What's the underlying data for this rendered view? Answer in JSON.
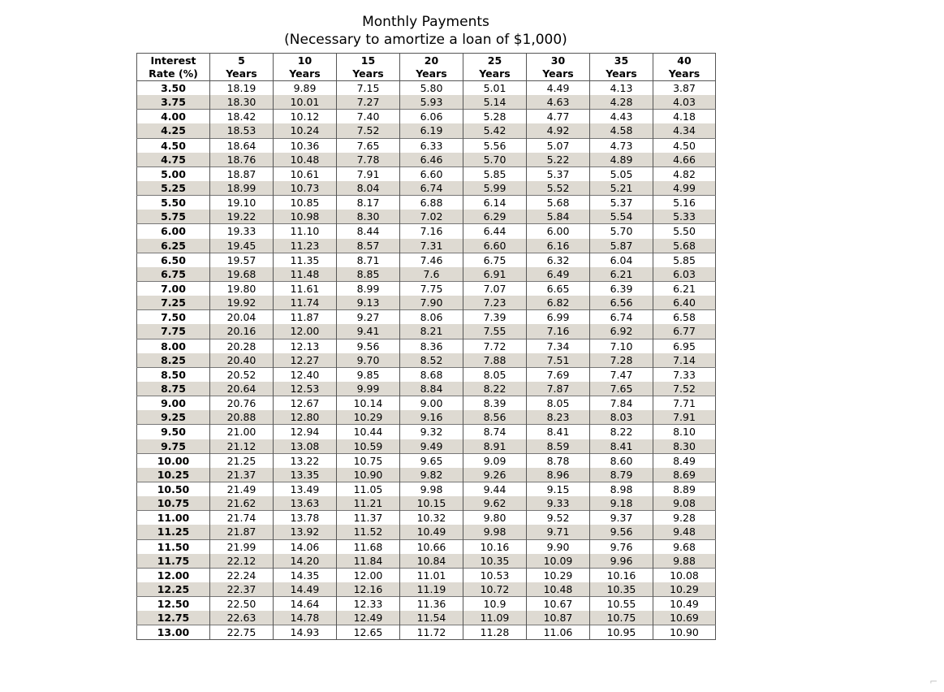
{
  "title": "Monthly Payments",
  "subtitle": "(Necessary to amortize a loan of $1,000)",
  "columns": [
    {
      "top": "Interest",
      "bottom": "Rate (%)"
    },
    {
      "top": "5",
      "bottom": "Years"
    },
    {
      "top": "10",
      "bottom": "Years"
    },
    {
      "top": "15",
      "bottom": "Years"
    },
    {
      "top": "20",
      "bottom": "Years"
    },
    {
      "top": "25",
      "bottom": "Years"
    },
    {
      "top": "30",
      "bottom": "Years"
    },
    {
      "top": "35",
      "bottom": "Years"
    },
    {
      "top": "40",
      "bottom": "Years"
    }
  ],
  "rows": [
    [
      "3.50",
      "18.19",
      "9.89",
      "7.15",
      "5.80",
      "5.01",
      "4.49",
      "4.13",
      "3.87"
    ],
    [
      "3.75",
      "18.30",
      "10.01",
      "7.27",
      "5.93",
      "5.14",
      "4.63",
      "4.28",
      "4.03"
    ],
    [
      "4.00",
      "18.42",
      "10.12",
      "7.40",
      "6.06",
      "5.28",
      "4.77",
      "4.43",
      "4.18"
    ],
    [
      "4.25",
      "18.53",
      "10.24",
      "7.52",
      "6.19",
      "5.42",
      "4.92",
      "4.58",
      "4.34"
    ],
    [
      "4.50",
      "18.64",
      "10.36",
      "7.65",
      "6.33",
      "5.56",
      "5.07",
      "4.73",
      "4.50"
    ],
    [
      "4.75",
      "18.76",
      "10.48",
      "7.78",
      "6.46",
      "5.70",
      "5.22",
      "4.89",
      "4.66"
    ],
    [
      "5.00",
      "18.87",
      "10.61",
      "7.91",
      "6.60",
      "5.85",
      "5.37",
      "5.05",
      "4.82"
    ],
    [
      "5.25",
      "18.99",
      "10.73",
      "8.04",
      "6.74",
      "5.99",
      "5.52",
      "5.21",
      "4.99"
    ],
    [
      "5.50",
      "19.10",
      "10.85",
      "8.17",
      "6.88",
      "6.14",
      "5.68",
      "5.37",
      "5.16"
    ],
    [
      "5.75",
      "19.22",
      "10.98",
      "8.30",
      "7.02",
      "6.29",
      "5.84",
      "5.54",
      "5.33"
    ],
    [
      "6.00",
      "19.33",
      "11.10",
      "8.44",
      "7.16",
      "6.44",
      "6.00",
      "5.70",
      "5.50"
    ],
    [
      "6.25",
      "19.45",
      "11.23",
      "8.57",
      "7.31",
      "6.60",
      "6.16",
      "5.87",
      "5.68"
    ],
    [
      "6.50",
      "19.57",
      "11.35",
      "8.71",
      "7.46",
      "6.75",
      "6.32",
      "6.04",
      "5.85"
    ],
    [
      "6.75",
      "19.68",
      "11.48",
      "8.85",
      "7.6",
      "6.91",
      "6.49",
      "6.21",
      "6.03"
    ],
    [
      "7.00",
      "19.80",
      "11.61",
      "8.99",
      "7.75",
      "7.07",
      "6.65",
      "6.39",
      "6.21"
    ],
    [
      "7.25",
      "19.92",
      "11.74",
      "9.13",
      "7.90",
      "7.23",
      "6.82",
      "6.56",
      "6.40"
    ],
    [
      "7.50",
      "20.04",
      "11.87",
      "9.27",
      "8.06",
      "7.39",
      "6.99",
      "6.74",
      "6.58"
    ],
    [
      "7.75",
      "20.16",
      "12.00",
      "9.41",
      "8.21",
      "7.55",
      "7.16",
      "6.92",
      "6.77"
    ],
    [
      "8.00",
      "20.28",
      "12.13",
      "9.56",
      "8.36",
      "7.72",
      "7.34",
      "7.10",
      "6.95"
    ],
    [
      "8.25",
      "20.40",
      "12.27",
      "9.70",
      "8.52",
      "7.88",
      "7.51",
      "7.28",
      "7.14"
    ],
    [
      "8.50",
      "20.52",
      "12.40",
      "9.85",
      "8.68",
      "8.05",
      "7.69",
      "7.47",
      "7.33"
    ],
    [
      "8.75",
      "20.64",
      "12.53",
      "9.99",
      "8.84",
      "8.22",
      "7.87",
      "7.65",
      "7.52"
    ],
    [
      "9.00",
      "20.76",
      "12.67",
      "10.14",
      "9.00",
      "8.39",
      "8.05",
      "7.84",
      "7.71"
    ],
    [
      "9.25",
      "20.88",
      "12.80",
      "10.29",
      "9.16",
      "8.56",
      "8.23",
      "8.03",
      "7.91"
    ],
    [
      "9.50",
      "21.00",
      "12.94",
      "10.44",
      "9.32",
      "8.74",
      "8.41",
      "8.22",
      "8.10"
    ],
    [
      "9.75",
      "21.12",
      "13.08",
      "10.59",
      "9.49",
      "8.91",
      "8.59",
      "8.41",
      "8.30"
    ],
    [
      "10.00",
      "21.25",
      "13.22",
      "10.75",
      "9.65",
      "9.09",
      "8.78",
      "8.60",
      "8.49"
    ],
    [
      "10.25",
      "21.37",
      "13.35",
      "10.90",
      "9.82",
      "9.26",
      "8.96",
      "8.79",
      "8.69"
    ],
    [
      "10.50",
      "21.49",
      "13.49",
      "11.05",
      "9.98",
      "9.44",
      "9.15",
      "8.98",
      "8.89"
    ],
    [
      "10.75",
      "21.62",
      "13.63",
      "11.21",
      "10.15",
      "9.62",
      "9.33",
      "9.18",
      "9.08"
    ],
    [
      "11.00",
      "21.74",
      "13.78",
      "11.37",
      "10.32",
      "9.80",
      "9.52",
      "9.37",
      "9.28"
    ],
    [
      "11.25",
      "21.87",
      "13.92",
      "11.52",
      "10.49",
      "9.98",
      "9.71",
      "9.56",
      "9.48"
    ],
    [
      "11.50",
      "21.99",
      "14.06",
      "11.68",
      "10.66",
      "10.16",
      "9.90",
      "9.76",
      "9.68"
    ],
    [
      "11.75",
      "22.12",
      "14.20",
      "11.84",
      "10.84",
      "10.35",
      "10.09",
      "9.96",
      "9.88"
    ],
    [
      "12.00",
      "22.24",
      "14.35",
      "12.00",
      "11.01",
      "10.53",
      "10.29",
      "10.16",
      "10.08"
    ],
    [
      "12.25",
      "22.37",
      "14.49",
      "12.16",
      "11.19",
      "10.72",
      "10.48",
      "10.35",
      "10.29"
    ],
    [
      "12.50",
      "22.50",
      "14.64",
      "12.33",
      "11.36",
      "10.9",
      "10.67",
      "10.55",
      "10.49"
    ],
    [
      "12.75",
      "22.63",
      "14.78",
      "12.49",
      "11.54",
      "11.09",
      "10.87",
      "10.75",
      "10.69"
    ],
    [
      "13.00",
      "22.75",
      "14.93",
      "12.65",
      "11.72",
      "11.28",
      "11.06",
      "10.95",
      "10.90"
    ]
  ],
  "colors": {
    "shade": "#dedad2",
    "border": "#555555"
  }
}
